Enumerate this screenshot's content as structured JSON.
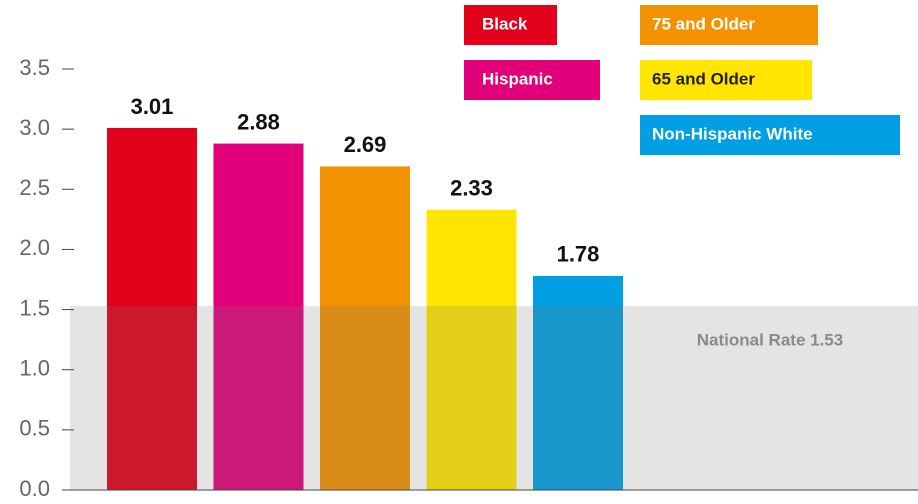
{
  "chart_data": {
    "type": "bar",
    "categories": [
      "Black",
      "Hispanic",
      "75 and Older",
      "65 and Older",
      "Non-Hispanic White"
    ],
    "values": [
      3.01,
      2.88,
      2.69,
      2.33,
      1.78
    ],
    "colors": [
      "#e2001a",
      "#e2007a",
      "#f39200",
      "#ffe500",
      "#009fe3"
    ],
    "ylim": [
      0,
      3.5
    ],
    "yticks": [
      {
        "value": 0,
        "label": "0.0"
      },
      0.5,
      {
        "value": 1,
        "label": "1.0"
      },
      1.5,
      {
        "value": 2,
        "label": "2.0"
      },
      2.5,
      {
        "value": 3,
        "label": "3.0"
      },
      3.5
    ],
    "national_rate": {
      "value": 1.53,
      "label": "National Rate 1.53"
    }
  }
}
